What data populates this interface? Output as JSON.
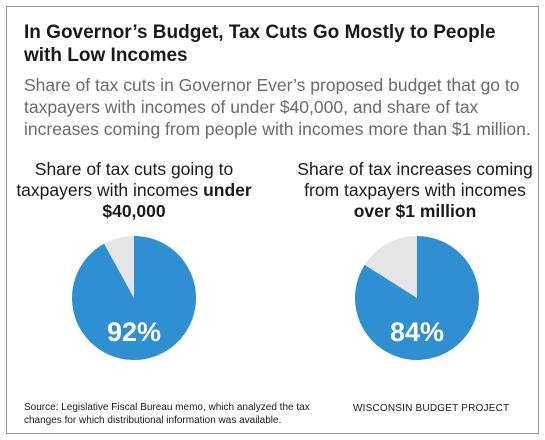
{
  "title": "In Governor’s Budget, Tax Cuts Go Mostly to People with Low Incomes",
  "subtitle": "Share of tax cuts in Governor Ever’s proposed budget that go to taxpayers with incomes of under $40,000, and share of tax increases coming from people with incomes more than $1 million.",
  "colors": {
    "primary": "#2E8FD3",
    "remainder": "#E5E5E5"
  },
  "chart_data": [
    {
      "type": "pie",
      "label_pre": "Share of tax cuts going to taxpayers with incomes ",
      "label_bold": "under $40,000",
      "slices": [
        {
          "name": "",
          "value": 92
        },
        {
          "name": "",
          "value": 8
        }
      ],
      "value_label": "92%"
    },
    {
      "type": "pie",
      "label_pre": "Share of tax increases coming from taxpayers with incomes ",
      "label_bold": "over $1 million",
      "slices": [
        {
          "name": "",
          "value": 84
        },
        {
          "name": "",
          "value": 16
        }
      ],
      "value_label": "84%"
    }
  ],
  "footer": {
    "source": "Source: Legislative Fiscal Bureau memo, which analyzed the tax changes for which distributional information was available.",
    "brand": "WISCONSIN BUDGET PROJECT"
  }
}
